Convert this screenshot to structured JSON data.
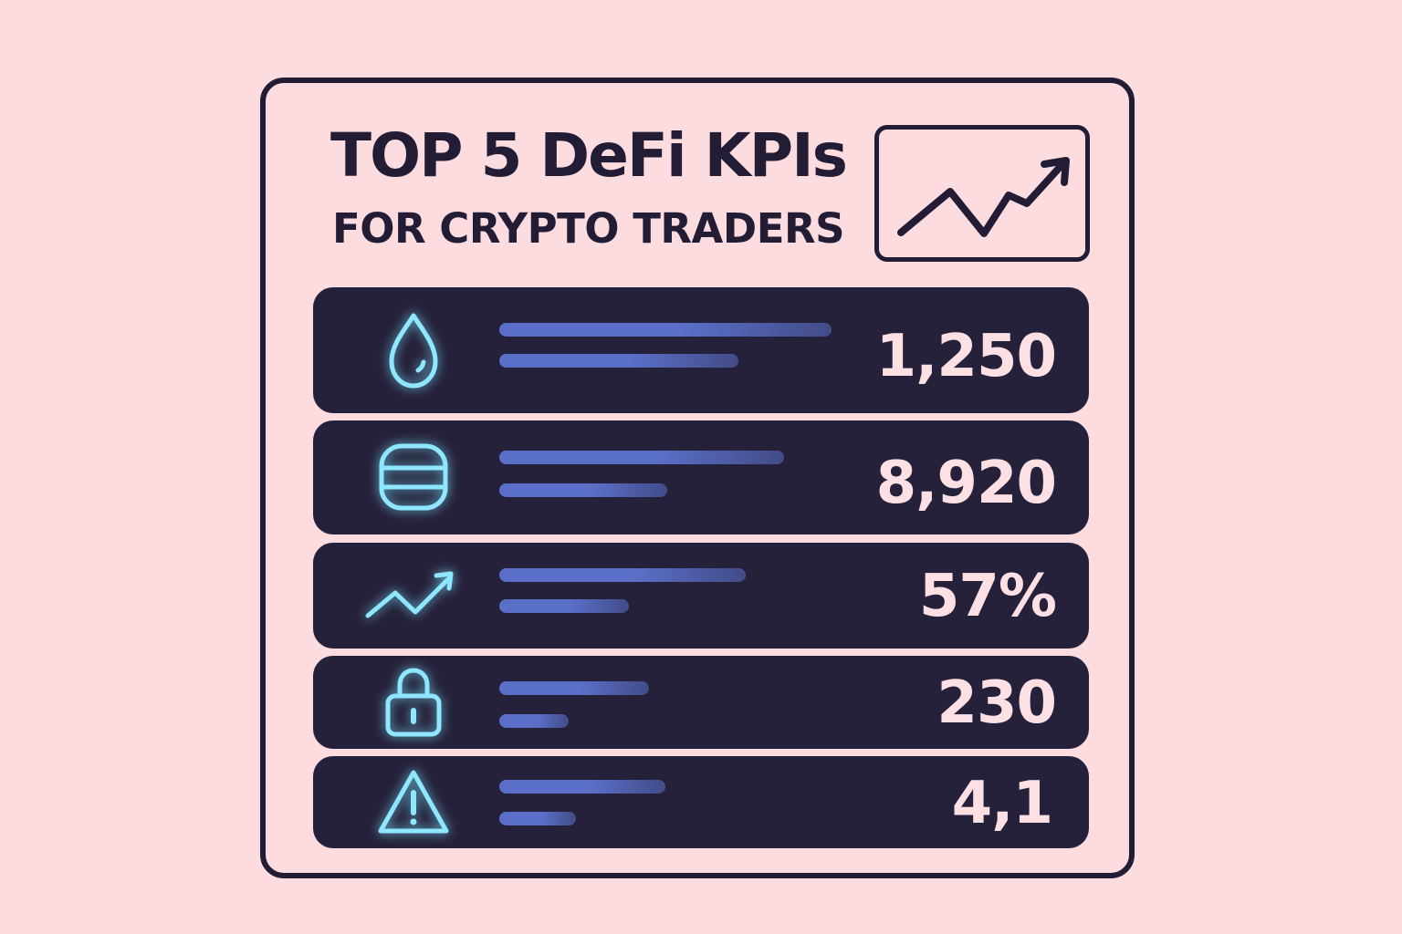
{
  "header": {
    "title": "TOP 5 DeFi KPIs",
    "subtitle": "FOR CRYPTO TRADERS",
    "chart_icon": "trend-up-chart-icon"
  },
  "colors": {
    "background": "#fddce0",
    "outline": "#221d35",
    "row_fill": "#26213a",
    "icon_glow": "#8fe6ff",
    "bar": "#5a6fc8",
    "value_text": "#fde0e3"
  },
  "kpis": [
    {
      "icon": "droplet-icon",
      "value": "1,250"
    },
    {
      "icon": "database-icon",
      "value": "8,920"
    },
    {
      "icon": "trend-up-icon",
      "value": "57%"
    },
    {
      "icon": "lock-icon",
      "value": "230"
    },
    {
      "icon": "warning-icon",
      "value": "4,1"
    }
  ]
}
